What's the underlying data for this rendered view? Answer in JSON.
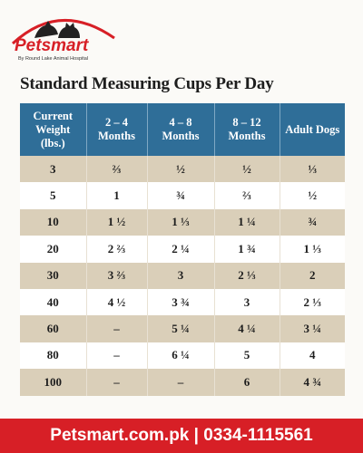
{
  "header": {
    "brand": "Petsmart",
    "tagline": "By Round Lake Animal Hospital"
  },
  "title": "Standard Measuring Cups Per Day",
  "table": {
    "headers": [
      "Current Weight (lbs.)",
      "2 – 4 Months",
      "4 – 8 Months",
      "8 – 12 Months",
      "Adult Dogs"
    ],
    "rows": [
      [
        "3",
        "⅔",
        "½",
        "½",
        "⅓"
      ],
      [
        "5",
        "1",
        "¾",
        "⅔",
        "½"
      ],
      [
        "10",
        "1 ½",
        "1 ⅓",
        "1 ¼",
        "¾"
      ],
      [
        "20",
        "2 ⅔",
        "2 ¼",
        "1 ¾",
        "1 ⅓"
      ],
      [
        "30",
        "3 ⅔",
        "3",
        "2 ⅓",
        "2"
      ],
      [
        "40",
        "4 ½",
        "3 ¾",
        "3",
        "2 ⅓"
      ],
      [
        "60",
        "–",
        "5 ¼",
        "4 ¼",
        "3 ¼"
      ],
      [
        "80",
        "–",
        "6 ¼",
        "5",
        "4"
      ],
      [
        "100",
        "–",
        "–",
        "6",
        "4 ¾"
      ]
    ]
  },
  "footer": {
    "contact": "Petsmart.com.pk | 0334-1115561"
  }
}
